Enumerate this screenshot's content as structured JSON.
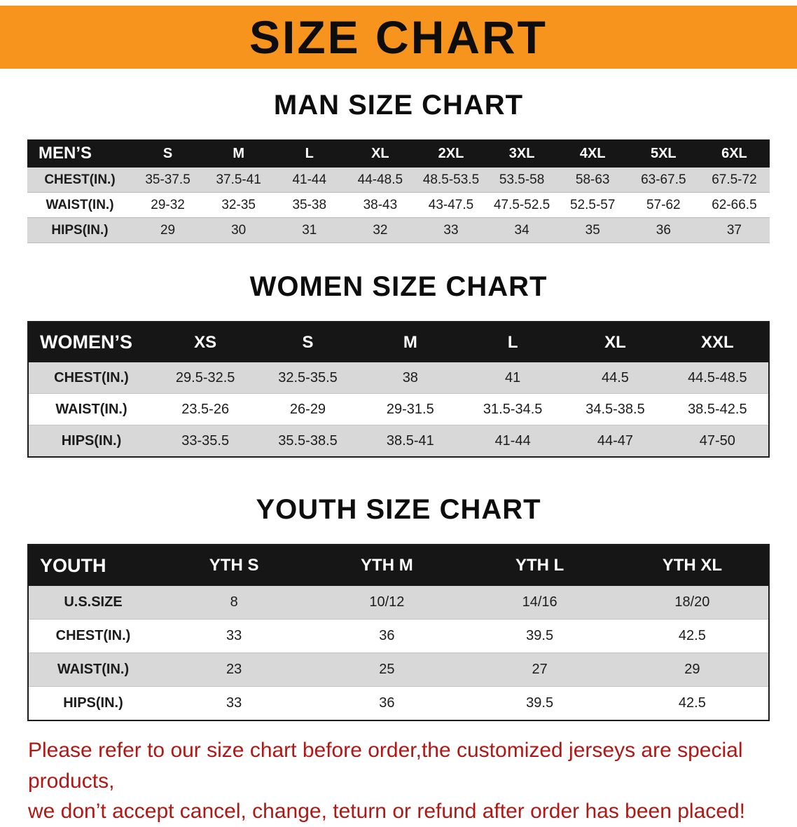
{
  "colors": {
    "banner_orange": "#F7941D",
    "header_black": "#161616",
    "stripe_gray": "#D8D8D8",
    "footer_red": "#B01815"
  },
  "banner": {
    "title": "SIZE CHART"
  },
  "sections": {
    "men": {
      "heading": "MAN SIZE CHART",
      "table": {
        "header": [
          "MEN’S",
          "S",
          "M",
          "L",
          "XL",
          "2XL",
          "3XL",
          "4XL",
          "5XL",
          "6XL"
        ],
        "rows": [
          [
            "CHEST(IN.)",
            "35-37.5",
            "37.5-41",
            "41-44",
            "44-48.5",
            "48.5-53.5",
            "53.5-58",
            "58-63",
            "63-67.5",
            "67.5-72"
          ],
          [
            "WAIST(IN.)",
            "29-32",
            "32-35",
            "35-38",
            "38-43",
            "43-47.5",
            "47.5-52.5",
            "52.5-57",
            "57-62",
            "62-66.5"
          ],
          [
            "HIPS(IN.)",
            "29",
            "30",
            "31",
            "32",
            "33",
            "34",
            "35",
            "36",
            "37"
          ]
        ]
      }
    },
    "women": {
      "heading": "WOMEN SIZE CHART",
      "table": {
        "header": [
          "WOMEN’S",
          "XS",
          "S",
          "M",
          "L",
          "XL",
          "XXL"
        ],
        "rows": [
          [
            "CHEST(IN.)",
            "29.5-32.5",
            "32.5-35.5",
            "38",
            "41",
            "44.5",
            "44.5-48.5"
          ],
          [
            "WAIST(IN.)",
            "23.5-26",
            "26-29",
            "29-31.5",
            "31.5-34.5",
            "34.5-38.5",
            "38.5-42.5"
          ],
          [
            "HIPS(IN.)",
            "33-35.5",
            "35.5-38.5",
            "38.5-41",
            "41-44",
            "44-47",
            "47-50"
          ]
        ]
      }
    },
    "youth": {
      "heading": "YOUTH SIZE CHART",
      "table": {
        "header": [
          "YOUTH",
          "YTH S",
          "YTH M",
          "YTH L",
          "YTH XL"
        ],
        "rows": [
          [
            "U.S.SIZE",
            "8",
            "10/12",
            "14/16",
            "18/20"
          ],
          [
            "CHEST(IN.)",
            "33",
            "36",
            "39.5",
            "42.5"
          ],
          [
            "WAIST(IN.)",
            "23",
            "25",
            "27",
            "29"
          ],
          [
            "HIPS(IN.)",
            "33",
            "36",
            "39.5",
            "42.5"
          ]
        ]
      }
    }
  },
  "footer": {
    "line1": "Please refer to our size chart before order,the customized jerseys are special products,",
    "line2": "we don’t accept cancel, change, teturn or refund after order has been placed!"
  }
}
